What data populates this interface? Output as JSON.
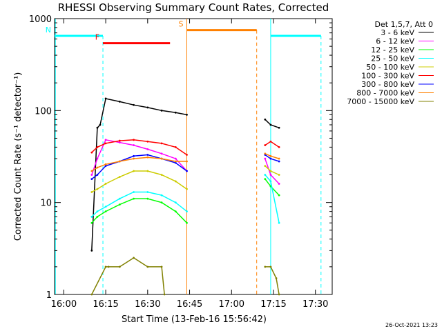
{
  "chart_data": {
    "type": "line",
    "title": "RHESSI Observing Summary Count Rates, Corrected",
    "xlabel": "Start Time (13-Feb-16 15:56:42)",
    "ylabel": "Corrected Count Rate (s⁻¹ detector⁻¹)",
    "x_axis": {
      "kind": "time",
      "range": [
        "15:56:42",
        "17:36:00"
      ],
      "tick_labels": [
        "16:00",
        "16:15",
        "16:30",
        "16:45",
        "17:00",
        "17:15",
        "17:30"
      ],
      "tick_values": [
        "16:00",
        "16:15",
        "16:30",
        "16:45",
        "17:00",
        "17:15",
        "17:30"
      ]
    },
    "y_axis": {
      "scale": "log",
      "range": [
        1,
        1000
      ],
      "tick_labels": [
        "1",
        "10",
        "100",
        "1000"
      ],
      "tick_values": [
        1,
        10,
        100,
        1000
      ]
    },
    "grid": false,
    "legend": {
      "placement": "right",
      "header": "Det 1,5,7, Att 0"
    },
    "series": [
      {
        "name": "3 - 6 keV",
        "color": "#000000",
        "x": [
          "16:10",
          "16:12",
          "16:13",
          "16:15",
          "16:20",
          "16:25",
          "16:30",
          "16:35",
          "16:40",
          "16:44",
          "17:12",
          "17:14",
          "17:17"
        ],
        "y": [
          3,
          65,
          70,
          135,
          125,
          115,
          108,
          100,
          95,
          90,
          80,
          70,
          65
        ]
      },
      {
        "name": "6 - 12 keV",
        "color": "#ff00ff",
        "x": [
          "16:10",
          "16:12",
          "16:15",
          "16:20",
          "16:25",
          "16:30",
          "16:35",
          "16:40",
          "16:44",
          "17:12",
          "17:14",
          "17:17"
        ],
        "y": [
          20,
          30,
          48,
          45,
          42,
          38,
          34,
          30,
          22,
          30,
          20,
          16
        ]
      },
      {
        "name": "12 - 25 keV",
        "color": "#00ff00",
        "x": [
          "16:10",
          "16:12",
          "16:15",
          "16:20",
          "16:25",
          "16:30",
          "16:35",
          "16:40",
          "16:44",
          "17:12",
          "17:14",
          "17:17"
        ],
        "y": [
          6,
          7,
          8,
          9.5,
          11,
          11,
          10,
          8,
          6,
          18,
          15,
          12
        ]
      },
      {
        "name": "25 - 50 keV",
        "color": "#00ffff",
        "x": [
          "16:10",
          "16:12",
          "16:15",
          "16:20",
          "16:25",
          "16:30",
          "16:35",
          "16:40",
          "16:44",
          "17:12",
          "17:14",
          "17:17"
        ],
        "y": [
          7,
          8,
          9,
          11,
          13,
          13,
          12,
          10,
          8,
          20,
          17,
          6
        ]
      },
      {
        "name": "50 - 100 keV",
        "color": "#cccc00",
        "x": [
          "16:10",
          "16:12",
          "16:15",
          "16:20",
          "16:25",
          "16:30",
          "16:35",
          "16:40",
          "16:44",
          "17:12",
          "17:14",
          "17:17"
        ],
        "y": [
          13,
          14,
          16,
          19,
          22,
          22,
          20,
          17,
          14,
          25,
          22,
          20
        ]
      },
      {
        "name": "100 - 300 keV",
        "color": "#ff0000",
        "x": [
          "16:10",
          "16:12",
          "16:15",
          "16:20",
          "16:25",
          "16:30",
          "16:35",
          "16:40",
          "16:44",
          "17:12",
          "17:14",
          "17:17"
        ],
        "y": [
          35,
          40,
          44,
          47,
          48,
          46,
          44,
          40,
          33,
          42,
          46,
          40
        ]
      },
      {
        "name": "300 - 800 keV",
        "color": "#0000ff",
        "x": [
          "16:10",
          "16:12",
          "16:15",
          "16:20",
          "16:25",
          "16:30",
          "16:35",
          "16:40",
          "16:44",
          "17:12",
          "17:14",
          "17:17"
        ],
        "y": [
          18,
          20,
          25,
          28,
          32,
          33,
          30,
          27,
          22,
          33,
          30,
          28
        ]
      },
      {
        "name": "800 - 7000 keV",
        "color": "#ff8000",
        "x": [
          "16:10",
          "16:12",
          "16:15",
          "16:20",
          "16:25",
          "16:30",
          "16:35",
          "16:40",
          "16:44",
          "17:12",
          "17:14",
          "17:17"
        ],
        "y": [
          22,
          24,
          26,
          28,
          30,
          31,
          30,
          28,
          28,
          34,
          32,
          30
        ]
      },
      {
        "name": "7000 - 15000 keV",
        "color": "#808000",
        "x": [
          "16:10",
          "16:15",
          "16:16",
          "16:20",
          "16:25",
          "16:30",
          "16:35",
          "16:36",
          "17:12",
          "17:14",
          "17:16",
          "17:17"
        ],
        "y": [
          1,
          2,
          2,
          2,
          2.5,
          2,
          2,
          1,
          2,
          2,
          1.5,
          1
        ]
      }
    ],
    "flag_bars": [
      {
        "label": "N",
        "color": "#00ffff",
        "y": 650,
        "segments": [
          [
            "15:56:42",
            "16:14"
          ],
          [
            "17:14",
            "17:32"
          ]
        ],
        "dashed_verticals": [
          "16:14",
          "17:32"
        ],
        "solid_verticals": [
          "15:57",
          "17:14"
        ]
      },
      {
        "label": "F",
        "color": "#ff0000",
        "y": 540,
        "segments": [
          [
            "16:14",
            "16:38"
          ]
        ]
      },
      {
        "label": "S",
        "color": "#ff8000",
        "y": 750,
        "segments": [
          [
            "16:44",
            "17:09"
          ]
        ],
        "dashed_verticals": [
          "17:09"
        ],
        "solid_verticals": [
          "16:44"
        ]
      }
    ],
    "footer": "26-Oct-2021 13:23"
  }
}
